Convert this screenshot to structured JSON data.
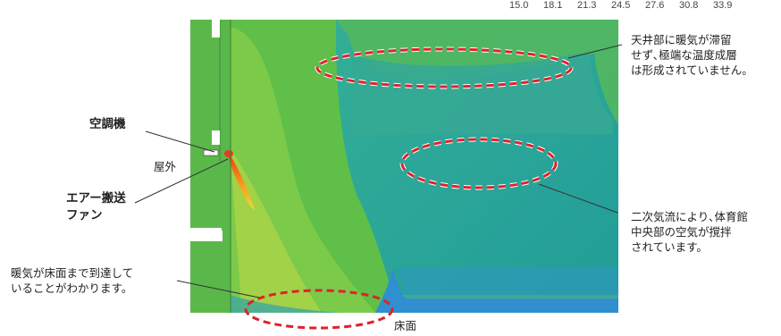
{
  "scale_ticks": [
    "15.0",
    "18.1",
    "21.3",
    "24.5",
    "27.6",
    "30.8",
    "33.9"
  ],
  "labels": {
    "aircon": "空調機",
    "outside": "屋外",
    "fan_line1": "エアー搬送",
    "fan_line2": "ファン",
    "floor_reach_line1": "暖気が床面まで到達して",
    "floor_reach_line2": "いることがわかります。",
    "floor": "床面",
    "ceiling_line1": "天井部に暖気が滞留",
    "ceiling_line2": "せず､極端な温度成層",
    "ceiling_line3": "は形成されていません。",
    "secondary_line1": "二次気流により､体育館",
    "secondary_line2": "中央部の空気が撹拌",
    "secondary_line3": "されています。"
  },
  "colors": {
    "highlight_ellipse": "#e0212b",
    "teal_region": "#2ba79a",
    "green_region": "#5cbf4a",
    "floor_blue": "#2f8fcf",
    "hot_jet": "#e83a1f"
  }
}
